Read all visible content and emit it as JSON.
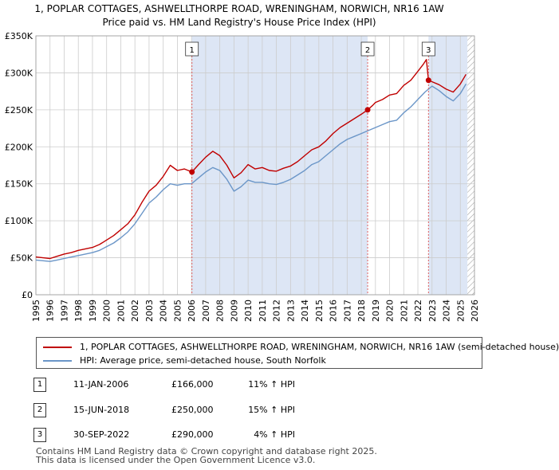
{
  "chart_data": {
    "type": "line",
    "title": "1, POPLAR COTTAGES, ASHWELLTHORPE ROAD, WRENINGHAM, NORWICH, NR16 1AW",
    "subtitle": "Price paid vs. HM Land Registry's House Price Index (HPI)",
    "xlim": [
      1995,
      2026
    ],
    "ylim": [
      0,
      350000
    ],
    "x_ticks": [
      "1995",
      "1996",
      "1997",
      "1998",
      "1999",
      "2000",
      "2001",
      "2002",
      "2003",
      "2004",
      "2005",
      "2006",
      "2007",
      "2008",
      "2009",
      "2010",
      "2011",
      "2012",
      "2013",
      "2014",
      "2015",
      "2016",
      "2017",
      "2018",
      "2019",
      "2020",
      "2021",
      "2022",
      "2023",
      "2024",
      "2025",
      "2026"
    ],
    "y_ticks": [
      {
        "value": 0,
        "label": "£0"
      },
      {
        "value": 50000,
        "label": "£50K"
      },
      {
        "value": 100000,
        "label": "£100K"
      },
      {
        "value": 150000,
        "label": "£150K"
      },
      {
        "value": 200000,
        "label": "£200K"
      },
      {
        "value": 250000,
        "label": "£250K"
      },
      {
        "value": 300000,
        "label": "£300K"
      },
      {
        "value": 350000,
        "label": "£350K"
      }
    ],
    "shaded_ranges": [
      [
        2006.03,
        2018.45
      ],
      [
        2022.75,
        2025.5
      ]
    ],
    "hatched_from": 2025.5,
    "series": [
      {
        "name": "1, POPLAR COTTAGES, ASHWELLTHORPE ROAD, WRENINGHAM, NORWICH, NR16 1AW (semi-detached house)",
        "color": "#c00000",
        "x": [
          1995,
          1995.5,
          1996,
          1996.5,
          1997,
          1997.5,
          1998,
          1998.5,
          1999,
          1999.5,
          2000,
          2000.5,
          2001,
          2001.5,
          2002,
          2002.5,
          2003,
          2003.5,
          2004,
          2004.5,
          2005,
          2005.5,
          2006.03,
          2006.5,
          2007,
          2007.5,
          2008,
          2008.5,
          2009,
          2009.5,
          2010,
          2010.5,
          2011,
          2011.5,
          2012,
          2012.5,
          2013,
          2013.5,
          2014,
          2014.5,
          2015,
          2015.5,
          2016,
          2016.5,
          2017,
          2017.5,
          2018,
          2018.45,
          2018.8,
          2019,
          2019.5,
          2020,
          2020.5,
          2021,
          2021.5,
          2022,
          2022.4,
          2022.6,
          2022.75,
          2023,
          2023.5,
          2024,
          2024.5,
          2025,
          2025.4
        ],
        "y": [
          51000,
          50000,
          49000,
          52000,
          55000,
          57000,
          60000,
          62000,
          64000,
          68000,
          74000,
          80000,
          88000,
          96000,
          108000,
          125000,
          140000,
          148000,
          160000,
          175000,
          168000,
          170000,
          166000,
          176000,
          186000,
          194000,
          188000,
          175000,
          158000,
          165000,
          176000,
          170000,
          172000,
          168000,
          167000,
          171000,
          174000,
          180000,
          188000,
          196000,
          200000,
          208000,
          218000,
          226000,
          232000,
          238000,
          244000,
          250000,
          256000,
          260000,
          264000,
          270000,
          272000,
          283000,
          290000,
          302000,
          312000,
          318000,
          290000,
          288000,
          284000,
          278000,
          274000,
          285000,
          298000
        ]
      },
      {
        "name": "HPI: Average price, semi-detached house, South Norfolk",
        "color": "#6b96c8",
        "x": [
          1995,
          1995.5,
          1996,
          1996.5,
          1997,
          1997.5,
          1998,
          1998.5,
          1999,
          1999.5,
          2000,
          2000.5,
          2001,
          2001.5,
          2002,
          2002.5,
          2003,
          2003.5,
          2004,
          2004.5,
          2005,
          2005.5,
          2006,
          2006.5,
          2007,
          2007.5,
          2008,
          2008.5,
          2009,
          2009.5,
          2010,
          2010.5,
          2011,
          2011.5,
          2012,
          2012.5,
          2013,
          2013.5,
          2014,
          2014.5,
          2015,
          2015.5,
          2016,
          2016.5,
          2017,
          2017.5,
          2018,
          2018.5,
          2019,
          2019.5,
          2020,
          2020.5,
          2021,
          2021.5,
          2022,
          2022.5,
          2022.75,
          2023,
          2023.5,
          2024,
          2024.5,
          2025,
          2025.4
        ],
        "y": [
          47000,
          46000,
          45000,
          47000,
          49000,
          51000,
          53000,
          55000,
          57000,
          60000,
          65000,
          70000,
          77000,
          85000,
          96000,
          110000,
          124000,
          132000,
          142000,
          150000,
          148000,
          150000,
          150000,
          158000,
          166000,
          172000,
          168000,
          156000,
          140000,
          146000,
          155000,
          152000,
          152000,
          150000,
          149000,
          152000,
          156000,
          162000,
          168000,
          176000,
          180000,
          188000,
          196000,
          204000,
          210000,
          214000,
          218000,
          222000,
          226000,
          230000,
          234000,
          236000,
          246000,
          254000,
          264000,
          274000,
          278000,
          282000,
          276000,
          268000,
          262000,
          272000,
          285000
        ]
      }
    ],
    "markers": [
      {
        "label": "1",
        "x": 2006.03,
        "y": 166000
      },
      {
        "label": "2",
        "x": 2018.45,
        "y": 250000
      },
      {
        "label": "3",
        "x": 2022.75,
        "y": 290000
      }
    ]
  },
  "legend": {
    "red_label": "1, POPLAR COTTAGES, ASHWELLTHORPE ROAD, WRENINGHAM, NORWICH, NR16 1AW (semi-detached house)",
    "blue_label": "HPI: Average price, semi-detached house, South Norfolk",
    "red_color": "#c00000",
    "blue_color": "#6b96c8"
  },
  "transactions": [
    {
      "num": "1",
      "date": "11-JAN-2006",
      "price": "£166,000",
      "hpi": "11% ↑ HPI"
    },
    {
      "num": "2",
      "date": "15-JUN-2018",
      "price": "£250,000",
      "hpi": "15% ↑ HPI"
    },
    {
      "num": "3",
      "date": "30-SEP-2022",
      "price": "£290,000",
      "hpi": "4% ↑ HPI"
    }
  ],
  "footer": {
    "line1": "Contains HM Land Registry data © Crown copyright and database right 2025.",
    "line2": "This data is licensed under the Open Government Licence v3.0."
  }
}
